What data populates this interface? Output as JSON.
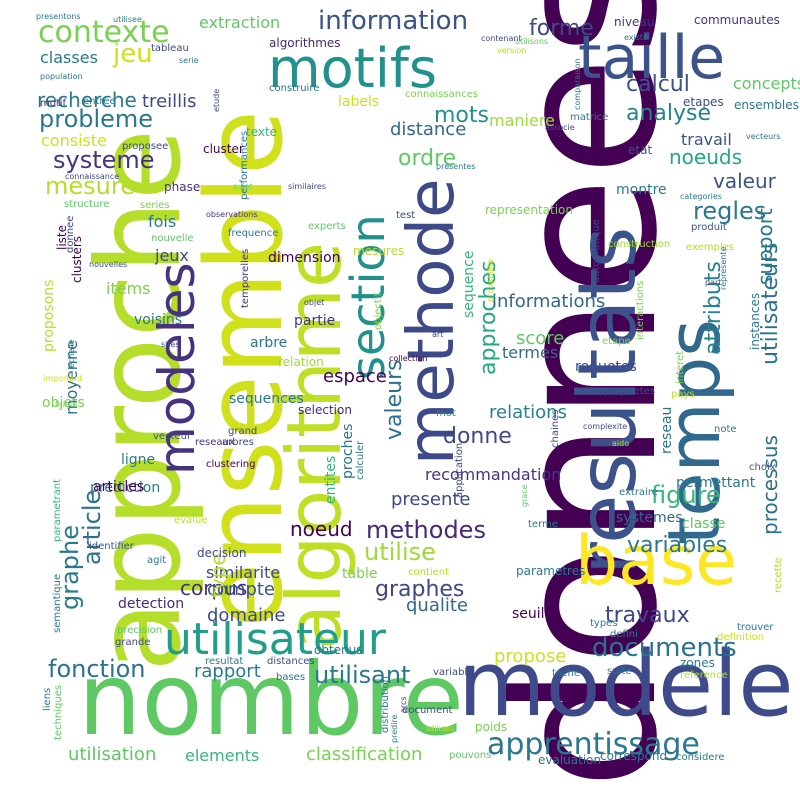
{
  "words": [
    {
      "id": "donnees",
      "text": "donnees",
      "color": "#440154"
    },
    {
      "id": "approche",
      "text": "approche",
      "color": "#b5de2b"
    },
    {
      "id": "ensemble",
      "text": "ensemble",
      "color": "#d0e11c"
    },
    {
      "id": "nombre",
      "text": "nombre",
      "color": "#5ec962"
    },
    {
      "id": "modele",
      "text": "modele",
      "color": "#3e4a89"
    },
    {
      "id": "resultats",
      "text": "resultats",
      "color": "#3b528b"
    },
    {
      "id": "algorithme",
      "text": "algorithme",
      "color": "#bddf26"
    },
    {
      "id": "temps",
      "text": "temps",
      "color": "#31688e"
    },
    {
      "id": "base",
      "text": "base",
      "color": "#fde725"
    },
    {
      "id": "methode",
      "text": "methode",
      "color": "#3e4989"
    },
    {
      "id": "taille",
      "text": "taille",
      "color": "#3b528b"
    },
    {
      "id": "motifs",
      "text": "motifs",
      "color": "#21918c"
    },
    {
      "id": "modeles",
      "text": "modeles",
      "color": "#46327e"
    },
    {
      "id": "section",
      "text": "section",
      "color": "#21918c"
    },
    {
      "id": "utilisateur",
      "text": "utilisateur",
      "color": "#1f9e89"
    },
    {
      "id": "apprentissage",
      "text": "apprentissage",
      "color": "#2a788e"
    },
    {
      "id": "contexte",
      "text": "contexte",
      "color": "#7ad151"
    },
    {
      "id": "information",
      "text": "information",
      "color": "#3b528b"
    },
    {
      "id": "documents",
      "text": "documents",
      "color": "#2c718e"
    },
    {
      "id": "variables",
      "text": "variables",
      "color": "#2a788e"
    },
    {
      "id": "utilisateurs",
      "text": "utilisateurs",
      "color": "#2c728e"
    },
    {
      "id": "probleme",
      "text": "probleme",
      "color": "#2a788e"
    },
    {
      "id": "analyse",
      "text": "analyse",
      "color": "#26828e"
    },
    {
      "id": "fonction",
      "text": "fonction",
      "color": "#2c728e"
    },
    {
      "id": "methodes",
      "text": "methodes",
      "color": "#482878"
    },
    {
      "id": "utilisant",
      "text": "utilisant",
      "color": "#2a788e"
    },
    {
      "id": "travaux",
      "text": "travaux",
      "color": "#404688"
    },
    {
      "id": "systeme",
      "text": "systeme",
      "color": "#46337f"
    },
    {
      "id": "mesure",
      "text": "mesure",
      "color": "#b5de2b"
    },
    {
      "id": "recherche",
      "text": "recherche",
      "color": "#2a788e"
    },
    {
      "id": "jeu",
      "text": "jeu",
      "color": "#cde11d"
    },
    {
      "id": "regles",
      "text": "regles",
      "color": "#2a788e"
    },
    {
      "id": "noeuds",
      "text": "noeuds",
      "color": "#22a884"
    },
    {
      "id": "valeur",
      "text": "valeur",
      "color": "#3b528b"
    },
    {
      "id": "figure",
      "text": "figure",
      "color": "#35b779"
    },
    {
      "id": "graphes",
      "text": "graphes",
      "color": "#414487"
    },
    {
      "id": "utilise",
      "text": "utilise",
      "color": "#a0da39"
    },
    {
      "id": "graphe",
      "text": "graphe",
      "color": "#2a788e"
    },
    {
      "id": "article",
      "text": "article",
      "color": "#2c728e"
    },
    {
      "id": "calcul",
      "text": "calcul",
      "color": "#3b528b"
    },
    {
      "id": "forme",
      "text": "forme",
      "color": "#3e4a89"
    },
    {
      "id": "mots",
      "text": "mots",
      "color": "#21918c"
    },
    {
      "id": "ordre",
      "text": "ordre",
      "color": "#5ec962"
    },
    {
      "id": "distance",
      "text": "distance",
      "color": "#31688e"
    },
    {
      "id": "donne",
      "text": "donne",
      "color": "#3e4989"
    },
    {
      "id": "approches",
      "text": "approches",
      "color": "#22a884"
    },
    {
      "id": "informations",
      "text": "informations",
      "color": "#31688e"
    },
    {
      "id": "valeurs",
      "text": "valeurs",
      "color": "#2c728e"
    },
    {
      "id": "attributs",
      "text": "attributs",
      "color": "#26828e"
    },
    {
      "id": "support",
      "text": "support",
      "color": "#2a788e"
    },
    {
      "id": "processus",
      "text": "processus",
      "color": "#2c718e"
    },
    {
      "id": "classification",
      "text": "classification",
      "color": "#7ad151"
    },
    {
      "id": "utilisation",
      "text": "utilisation",
      "color": "#5ec962"
    },
    {
      "id": "elements",
      "text": "elements",
      "color": "#35b779"
    },
    {
      "id": "rapport",
      "text": "rapport",
      "color": "#2a788e"
    },
    {
      "id": "propose",
      "text": "propose",
      "color": "#cde11d"
    },
    {
      "id": "qualite",
      "text": "qualite",
      "color": "#31688e"
    },
    {
      "id": "corpus",
      "text": "corpus",
      "color": "#46337f"
    },
    {
      "id": "compte",
      "text": "compte",
      "color": "#3b528b"
    },
    {
      "id": "domaine",
      "text": "domaine",
      "color": "#3e4989"
    },
    {
      "id": "similarite",
      "text": "similarite",
      "color": "#3e4a89"
    },
    {
      "id": "noeud",
      "text": "noeud",
      "color": "#440154"
    },
    {
      "id": "type",
      "text": "type",
      "color": "#b5de2b"
    },
    {
      "id": "presente",
      "text": "presente",
      "color": "#3e4989"
    },
    {
      "id": "recommandation",
      "text": "recommandation",
      "color": "#46337f"
    },
    {
      "id": "relations",
      "text": "relations",
      "color": "#26828e"
    },
    {
      "id": "score",
      "text": "score",
      "color": "#5ec962"
    },
    {
      "id": "termes",
      "text": "termes",
      "color": "#31688e"
    },
    {
      "id": "espace",
      "text": "espace",
      "color": "#440154"
    },
    {
      "id": "treillis",
      "text": "treillis",
      "color": "#3e4989"
    },
    {
      "id": "classes",
      "text": "classes",
      "color": "#2a788e"
    },
    {
      "id": "concepts",
      "text": "concepts",
      "color": "#5ec962"
    },
    {
      "id": "travail",
      "text": "travail",
      "color": "#3b528b"
    },
    {
      "id": "maniere",
      "text": "maniere",
      "color": "#a0da39"
    },
    {
      "id": "consiste",
      "text": "consiste",
      "color": "#cde11d"
    },
    {
      "id": "jeux",
      "text": "jeux",
      "color": "#3e4989"
    },
    {
      "id": "fois",
      "text": "fois",
      "color": "#2a788e"
    },
    {
      "id": "items",
      "text": "items",
      "color": "#7ad151"
    },
    {
      "id": "objets",
      "text": "objets",
      "color": "#7ad151"
    },
    {
      "id": "moyenne",
      "text": "moyenne",
      "color": "#2c728e"
    },
    {
      "id": "proposons",
      "text": "proposons",
      "color": "#b5de2b"
    },
    {
      "id": "extraction",
      "text": "extraction",
      "color": "#5ec962"
    },
    {
      "id": "prediction",
      "text": "prediction",
      "color": "#2a788e"
    },
    {
      "id": "entites",
      "text": "entites",
      "color": "#35b779"
    },
    {
      "id": "proches",
      "text": "proches",
      "color": "#2c728e"
    },
    {
      "id": "reseau",
      "text": "reseau",
      "color": "#2c728e"
    },
    {
      "id": "classe",
      "text": "classe",
      "color": "#5ec962"
    },
    {
      "id": "table",
      "text": "table",
      "color": "#7ad151"
    },
    {
      "id": "montre",
      "text": "montre",
      "color": "#2a788e"
    },
    {
      "id": "labels",
      "text": "labels",
      "color": "#cde11d"
    },
    {
      "id": "sequence",
      "text": "sequence",
      "color": "#35b779"
    },
    {
      "id": "sequences",
      "text": "sequences",
      "color": "#2a788e"
    },
    {
      "id": "dimension",
      "text": "dimension",
      "color": "#440154"
    },
    {
      "id": "requetes",
      "text": "requetes",
      "color": "#3e4989"
    },
    {
      "id": "permettant",
      "text": "permettant",
      "color": "#2a788e"
    },
    {
      "id": "systemes",
      "text": "systemes",
      "color": "#31688e"
    },
    {
      "id": "articles",
      "text": "articles",
      "color": "#440154"
    },
    {
      "id": "ligne",
      "text": "ligne",
      "color": "#2a788e"
    },
    {
      "id": "seuil",
      "text": "seuil",
      "color": "#440154"
    },
    {
      "id": "detection",
      "text": "detection",
      "color": "#482878"
    },
    {
      "id": "obtenus",
      "text": "obtenus",
      "color": "#2a788e"
    },
    {
      "id": "selection",
      "text": "selection",
      "color": "#482878"
    },
    {
      "id": "voisins",
      "text": "voisins",
      "color": "#2a788e"
    },
    {
      "id": "partie",
      "text": "partie",
      "color": "#46337f"
    },
    {
      "id": "arbre",
      "text": "arbre",
      "color": "#2c728e"
    },
    {
      "id": "relation",
      "text": "relation",
      "color": "#a0da39"
    },
    {
      "id": "communautes",
      "text": "communautes",
      "color": "#46337f"
    },
    {
      "id": "niveau",
      "text": "niveau",
      "color": "#46337f"
    },
    {
      "id": "etapes",
      "text": "etapes",
      "color": "#3e4989"
    },
    {
      "id": "ensembles",
      "text": "ensembles",
      "color": "#2a788e"
    },
    {
      "id": "texte",
      "text": "texte",
      "color": "#35b779"
    },
    {
      "id": "cluster",
      "text": "cluster",
      "color": "#440154"
    },
    {
      "id": "etat",
      "text": "etat",
      "color": "#3b528b"
    },
    {
      "id": "algorithmes",
      "text": "algorithmes",
      "color": "#482878"
    },
    {
      "id": "representation",
      "text": "representation",
      "color": "#7ad151"
    },
    {
      "id": "construction",
      "text": "construction",
      "color": "#a0da39"
    },
    {
      "id": "produit",
      "text": "produit",
      "color": "#3b528b"
    },
    {
      "id": "clusters",
      "text": "clusters",
      "color": "#440154"
    },
    {
      "id": "liste",
      "text": "liste",
      "color": "#440154"
    },
    {
      "id": "donnee",
      "text": "donnee",
      "color": "#3e4989"
    },
    {
      "id": "mesures",
      "text": "mesures",
      "color": "#b5de2b"
    },
    {
      "id": "temporelles",
      "text": "temporelles",
      "color": "#46337f"
    },
    {
      "id": "experts",
      "text": "experts",
      "color": "#5ec962"
    },
    {
      "id": "frequence",
      "text": "frequence",
      "color": "#2a788e"
    },
    {
      "id": "phase",
      "text": "phase",
      "color": "#46337f"
    },
    {
      "id": "performances",
      "text": "performances",
      "color": "#2a788e"
    },
    {
      "id": "interactions",
      "text": "interactions",
      "color": "#7ad151"
    },
    {
      "id": "instances",
      "text": "instances",
      "color": "#2a788e"
    },
    {
      "id": "interet",
      "text": "interet",
      "color": "#7ad151"
    },
    {
      "id": "proprietes",
      "text": "proprietes",
      "color": "#3e4989"
    },
    {
      "id": "chaines",
      "text": "chaines",
      "color": "#3e4989"
    },
    {
      "id": "extraire",
      "text": "extraire",
      "color": "#2c728e"
    },
    {
      "id": "choix",
      "text": "choix",
      "color": "#3b528b"
    },
    {
      "id": "note",
      "text": "note",
      "color": "#2a788e"
    },
    {
      "id": "grand",
      "text": "grand",
      "color": "#3e4989"
    },
    {
      "id": "reseaux",
      "text": "reseaux",
      "color": "#46337f"
    },
    {
      "id": "arbres",
      "text": "arbres",
      "color": "#3e4989"
    },
    {
      "id": "clustering",
      "text": "clustering",
      "color": "#440154"
    },
    {
      "id": "vecteur",
      "text": "vecteur",
      "color": "#3b528b"
    },
    {
      "id": "calculer",
      "text": "calculer",
      "color": "#2a788e"
    },
    {
      "id": "application",
      "text": "application",
      "color": "#3e4989"
    },
    {
      "id": "objectif",
      "text": "objectif",
      "color": "#7ad151"
    },
    {
      "id": "parametres",
      "text": "parametres",
      "color": "#2a788e"
    },
    {
      "id": "decision",
      "text": "decision",
      "color": "#3e4989"
    },
    {
      "id": "identifier",
      "text": "identifier",
      "color": "#3b528b"
    },
    {
      "id": "evalue",
      "text": "evalue",
      "color": "#b5de2b"
    },
    {
      "id": "agit",
      "text": "agit",
      "color": "#2a788e"
    },
    {
      "id": "contient",
      "text": "contient",
      "color": "#b5de2b"
    },
    {
      "id": "suite",
      "text": "suite",
      "color": "#2a788e"
    },
    {
      "id": "zones",
      "text": "zones",
      "color": "#2a788e"
    },
    {
      "id": "variable",
      "text": "variable",
      "color": "#3e4989"
    },
    {
      "id": "tache",
      "text": "tache",
      "color": "#2a788e"
    },
    {
      "id": "resultat",
      "text": "resultat",
      "color": "#2a788e"
    },
    {
      "id": "bases",
      "text": "bases",
      "color": "#2c728e"
    },
    {
      "id": "distances",
      "text": "distances",
      "color": "#3e4989"
    },
    {
      "id": "poids",
      "text": "poids",
      "color": "#7ad151"
    },
    {
      "id": "evaluation",
      "text": "evaluation",
      "color": "#2a788e"
    },
    {
      "id": "correspond",
      "text": "correspond",
      "color": "#2a788e"
    },
    {
      "id": "pouvons",
      "text": "pouvons",
      "color": "#5ec962"
    },
    {
      "id": "document",
      "text": "document",
      "color": "#3e4989"
    },
    {
      "id": "considere",
      "text": "considere",
      "color": "#2a788e"
    },
    {
      "id": "reference",
      "text": "reference",
      "color": "#b5de2b"
    },
    {
      "id": "definition",
      "text": "definition",
      "color": "#cde11d"
    },
    {
      "id": "defini",
      "text": "defini",
      "color": "#2a788e"
    },
    {
      "id": "trouver",
      "text": "trouver",
      "color": "#2a788e"
    },
    {
      "id": "types",
      "text": "types",
      "color": "#2a788e"
    },
    {
      "id": "recette",
      "text": "recette",
      "color": "#b5de2b"
    },
    {
      "id": "terme",
      "text": "terme",
      "color": "#2a788e"
    },
    {
      "id": "semantique",
      "text": "semantique",
      "color": "#2a788e"
    },
    {
      "id": "parametrant",
      "text": "parametrant",
      "color": "#35b779"
    },
    {
      "id": "precision",
      "text": "precision",
      "color": "#5ec962"
    },
    {
      "id": "grande",
      "text": "grande",
      "color": "#3e4989"
    },
    {
      "id": "liens",
      "text": "liens",
      "color": "#2a788e"
    },
    {
      "id": "techniques",
      "text": "techniques",
      "color": "#5ec962"
    },
    {
      "id": "distribution",
      "text": "distribution",
      "color": "#2a788e"
    },
    {
      "id": "predire",
      "text": "predire",
      "color": "#2a788e"
    },
    {
      "id": "utilises",
      "text": "utilises",
      "color": "#cde11d"
    },
    {
      "id": "arcs",
      "text": "arcs",
      "color": "#3e4989"
    },
    {
      "id": "complexite",
      "text": "complexite",
      "color": "#3e4989"
    },
    {
      "id": "pays",
      "text": "pays",
      "color": "#b5de2b"
    },
    {
      "id": "aido",
      "text": "aido",
      "color": "#b5de2b"
    },
    {
      "id": "grace",
      "text": "grace",
      "color": "#5ec962"
    },
    {
      "id": "mot",
      "text": "mot",
      "color": "#2a788e"
    },
    {
      "id": "important",
      "text": "important",
      "color": "#cde11d"
    },
    {
      "id": "faible",
      "text": "faible",
      "color": "#7ad151"
    },
    {
      "id": "echelle",
      "text": "echelle",
      "color": "#2a788e"
    },
    {
      "id": "sites",
      "text": "sites",
      "color": "#3e4989"
    },
    {
      "id": "collection",
      "text": "collection",
      "color": "#440154"
    },
    {
      "id": "art",
      "text": "art",
      "color": "#3e4989"
    },
    {
      "id": "etape",
      "text": "etape",
      "color": "#7ad151"
    },
    {
      "id": "nouvelles",
      "text": "nouvelles",
      "color": "#3e4989"
    },
    {
      "id": "objet",
      "text": "objet",
      "color": "#3e4989"
    },
    {
      "id": "nouvelle",
      "text": "nouvelle",
      "color": "#5ec962"
    },
    {
      "id": "similaires",
      "text": "similaires",
      "color": "#3e4989"
    },
    {
      "id": "observations",
      "text": "observations",
      "color": "#46337f"
    },
    {
      "id": "series",
      "text": "series",
      "color": "#7ad151"
    },
    {
      "id": "sujet",
      "text": "sujet",
      "color": "#7ad151"
    },
    {
      "id": "test",
      "text": "test",
      "color": "#3e4989"
    },
    {
      "id": "categories",
      "text": "categories",
      "color": "#2a788e"
    },
    {
      "id": "exemples",
      "text": "exemples",
      "color": "#b5de2b"
    },
    {
      "id": "part",
      "text": "part",
      "color": "#3e4989"
    },
    {
      "id": "represente",
      "text": "represente",
      "color": "#2a788e"
    },
    {
      "id": "automatique",
      "text": "automatique",
      "color": "#3e4989"
    },
    {
      "id": "probabilite",
      "text": "probabilite",
      "color": "#b5de2b"
    },
    {
      "id": "structure",
      "text": "structure",
      "color": "#5ec962"
    },
    {
      "id": "connaissance",
      "text": "connaissance",
      "color": "#3e4989"
    },
    {
      "id": "proposee",
      "text": "proposee",
      "color": "#3e4989"
    },
    {
      "id": "motif",
      "text": "motif",
      "color": "#46337f"
    },
    {
      "id": "entree",
      "text": "entree",
      "color": "#2a788e"
    },
    {
      "id": "etude",
      "text": "etude",
      "color": "#3e4989"
    },
    {
      "id": "serie",
      "text": "serie",
      "color": "#2a788e"
    },
    {
      "id": "tableau",
      "text": "tableau",
      "color": "#3e4989"
    },
    {
      "id": "population",
      "text": "population",
      "color": "#2a788e"
    },
    {
      "id": "presentons",
      "text": "presentons",
      "color": "#2a788e"
    },
    {
      "id": "utilisee",
      "text": "utilisee",
      "color": "#2a788e"
    },
    {
      "id": "contenant",
      "text": "contenant",
      "color": "#3e4989"
    },
    {
      "id": "version",
      "text": "version",
      "color": "#b5de2b"
    },
    {
      "id": "utilisons",
      "text": "utilisons",
      "color": "#5ec962"
    },
    {
      "id": "existe",
      "text": "existe",
      "color": "#2a788e"
    },
    {
      "id": "construire",
      "text": "construire",
      "color": "#2a788e"
    },
    {
      "id": "connaissances",
      "text": "connaissances",
      "color": "#7ad151"
    },
    {
      "id": "comparaison",
      "text": "comparaison",
      "color": "#2a788e"
    },
    {
      "id": "matrice",
      "text": "matrice",
      "color": "#2a788e"
    },
    {
      "id": "associe",
      "text": "associe",
      "color": "#3e4989"
    },
    {
      "id": "vecteurs",
      "text": "vecteurs",
      "color": "#2a788e"
    },
    {
      "id": "presentes",
      "text": "presentes",
      "color": "#2a788e"
    }
  ]
}
